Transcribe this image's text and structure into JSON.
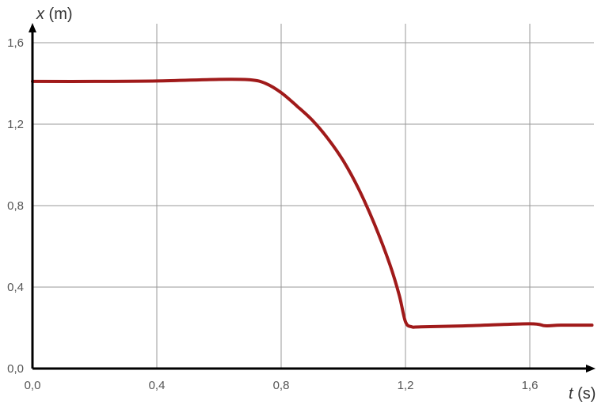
{
  "chart_data": {
    "type": "line",
    "title": "",
    "xlabel_var": "t",
    "xlabel_unit": " (s)",
    "ylabel_var": "x",
    "ylabel_unit": " (m)",
    "xlim": [
      0,
      1.8
    ],
    "ylim": [
      0,
      1.69
    ],
    "grid": true,
    "x_ticks": [
      0,
      0.4,
      0.8,
      1.2,
      1.6
    ],
    "x_tick_labels": [
      "0,0",
      "0,4",
      "0,8",
      "1,2",
      "1,6"
    ],
    "y_ticks": [
      0,
      0.4,
      0.8,
      1.2,
      1.6
    ],
    "y_tick_labels": [
      "0,0",
      "0,4",
      "0,8",
      "1,2",
      "1,6"
    ],
    "series": [
      {
        "color": "#a01a1a",
        "x": [
          0,
          0.2,
          0.4,
          0.6,
          0.7,
          0.75,
          0.8,
          0.85,
          0.9,
          0.95,
          1.0,
          1.05,
          1.1,
          1.15,
          1.18,
          1.2,
          1.22,
          1.25,
          1.4,
          1.6,
          1.65,
          1.7,
          1.8
        ],
        "y": [
          1.41,
          1.41,
          1.412,
          1.42,
          1.418,
          1.4,
          1.355,
          1.29,
          1.22,
          1.13,
          1.02,
          0.88,
          0.71,
          0.51,
          0.36,
          0.23,
          0.205,
          0.205,
          0.21,
          0.22,
          0.21,
          0.213,
          0.213
        ]
      }
    ]
  }
}
